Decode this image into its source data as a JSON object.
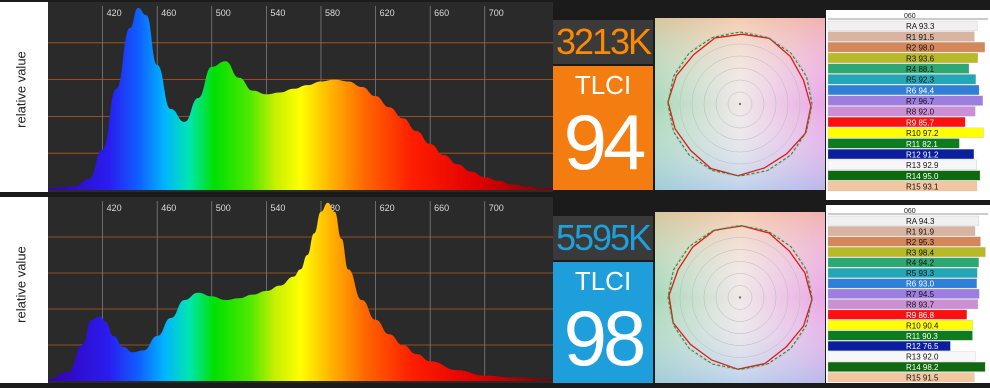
{
  "charts": [
    {
      "cct": "3213K",
      "cct_color": "#ff8a00",
      "tlci_label": "TLCI",
      "tlci_value": "94",
      "tlci_bg": "#f47d12",
      "ylabel": "relative value",
      "x_ticks": [
        "420",
        "460",
        "500",
        "540",
        "580",
        "620",
        "660",
        "700"
      ],
      "y_ticks": [
        "0.8",
        "0.6",
        "0.4",
        "0.2"
      ],
      "bar_scale_label": "060",
      "bars": [
        {
          "label": "RA 93.3",
          "color": "#f0f0f0"
        },
        {
          "label": "R1 91.5",
          "color": "#d9b4a0"
        },
        {
          "label": "R2 98.0",
          "color": "#d4885a"
        },
        {
          "label": "R3 93.6",
          "color": "#b9b928"
        },
        {
          "label": "R4 88.1",
          "color": "#2ea872"
        },
        {
          "label": "R5 92.3",
          "color": "#23a6b6"
        },
        {
          "label": "R6 94.4",
          "color": "#2f7fd8"
        },
        {
          "label": "R7 96.7",
          "color": "#9d7ee0"
        },
        {
          "label": "R8 92.0",
          "color": "#cc8fd6"
        },
        {
          "label": "R9 85.7",
          "color": "#ff1010"
        },
        {
          "label": "R10 97.2",
          "color": "#ffff00"
        },
        {
          "label": "R11 82.1",
          "color": "#0e7b1e"
        },
        {
          "label": "R12 91.2",
          "color": "#0b1f9e"
        },
        {
          "label": "R13 92.9",
          "color": "#f7f7f7"
        },
        {
          "label": "R14 95.0",
          "color": "#0f6a0f"
        },
        {
          "label": "R15 93.1",
          "color": "#f2c7a0"
        }
      ]
    },
    {
      "cct": "5595K",
      "cct_color": "#1ea0dd",
      "tlci_label": "TLCI",
      "tlci_value": "98",
      "tlci_bg": "#1e9fdc",
      "ylabel": "relative value",
      "x_ticks": [
        "420",
        "460",
        "500",
        "540",
        "580",
        "620",
        "660",
        "700"
      ],
      "y_ticks": [
        "0.8",
        "0.6",
        "0.4",
        "0.2"
      ],
      "bar_scale_label": "060",
      "bars": [
        {
          "label": "RA 94.3",
          "color": "#f0f0f0"
        },
        {
          "label": "R1 91.9",
          "color": "#d9b4a0"
        },
        {
          "label": "R2 95.3",
          "color": "#d4885a"
        },
        {
          "label": "R3 98.4",
          "color": "#b9b928"
        },
        {
          "label": "R4 94.2",
          "color": "#2ea872"
        },
        {
          "label": "R5 93.3",
          "color": "#23a6b6"
        },
        {
          "label": "R6 93.0",
          "color": "#2f7fd8"
        },
        {
          "label": "R7 94.5",
          "color": "#9d7ee0"
        },
        {
          "label": "R8 93.7",
          "color": "#cc8fd6"
        },
        {
          "label": "R9 86.8",
          "color": "#ff1010"
        },
        {
          "label": "R10 90.4",
          "color": "#ffff00"
        },
        {
          "label": "R11 90.3",
          "color": "#0e7b1e"
        },
        {
          "label": "R12 76.5",
          "color": "#0b1f9e"
        },
        {
          "label": "R13 92.0",
          "color": "#f7f7f7"
        },
        {
          "label": "R14 98.2",
          "color": "#0f6a0f"
        },
        {
          "label": "R15 91.5",
          "color": "#f2c7a0"
        }
      ]
    }
  ],
  "chart_data": [
    {
      "type": "area",
      "xlabel": "",
      "ylabel": "relative value",
      "xlim": [
        380,
        750
      ],
      "ylim": [
        0,
        1
      ],
      "grid": true,
      "x": [
        380,
        400,
        410,
        420,
        430,
        440,
        446,
        452,
        460,
        470,
        480,
        490,
        500,
        510,
        520,
        530,
        540,
        550,
        560,
        570,
        580,
        590,
        600,
        610,
        620,
        630,
        640,
        650,
        660,
        670,
        680,
        690,
        700,
        710,
        720,
        730,
        740,
        750
      ],
      "values": [
        0.01,
        0.02,
        0.06,
        0.22,
        0.55,
        0.88,
        0.99,
        0.95,
        0.68,
        0.44,
        0.37,
        0.5,
        0.67,
        0.7,
        0.61,
        0.54,
        0.52,
        0.53,
        0.55,
        0.57,
        0.59,
        0.6,
        0.59,
        0.56,
        0.51,
        0.45,
        0.39,
        0.32,
        0.25,
        0.19,
        0.14,
        0.1,
        0.07,
        0.05,
        0.03,
        0.02,
        0.01,
        0.01
      ]
    },
    {
      "type": "area",
      "xlabel": "",
      "ylabel": "relative value",
      "xlim": [
        380,
        750
      ],
      "ylim": [
        0,
        1
      ],
      "grid": true,
      "x": [
        380,
        395,
        405,
        412,
        418,
        422,
        428,
        435,
        442,
        450,
        460,
        470,
        480,
        490,
        500,
        510,
        520,
        530,
        540,
        550,
        560,
        565,
        570,
        575,
        580,
        585,
        590,
        595,
        600,
        610,
        620,
        630,
        640,
        650,
        660,
        680,
        700,
        720,
        750
      ],
      "values": [
        0.01,
        0.05,
        0.2,
        0.34,
        0.36,
        0.33,
        0.25,
        0.19,
        0.16,
        0.17,
        0.25,
        0.35,
        0.45,
        0.49,
        0.47,
        0.45,
        0.46,
        0.48,
        0.5,
        0.53,
        0.58,
        0.62,
        0.7,
        0.82,
        0.94,
        0.99,
        0.94,
        0.79,
        0.62,
        0.45,
        0.34,
        0.26,
        0.2,
        0.15,
        0.11,
        0.06,
        0.03,
        0.02,
        0.01
      ]
    }
  ],
  "polar": {
    "bg_left": "#a8d8b8",
    "bg_right": "#e9a6e6",
    "reference_color": "#2f8a2f",
    "measured_color": "#e01b1b"
  }
}
